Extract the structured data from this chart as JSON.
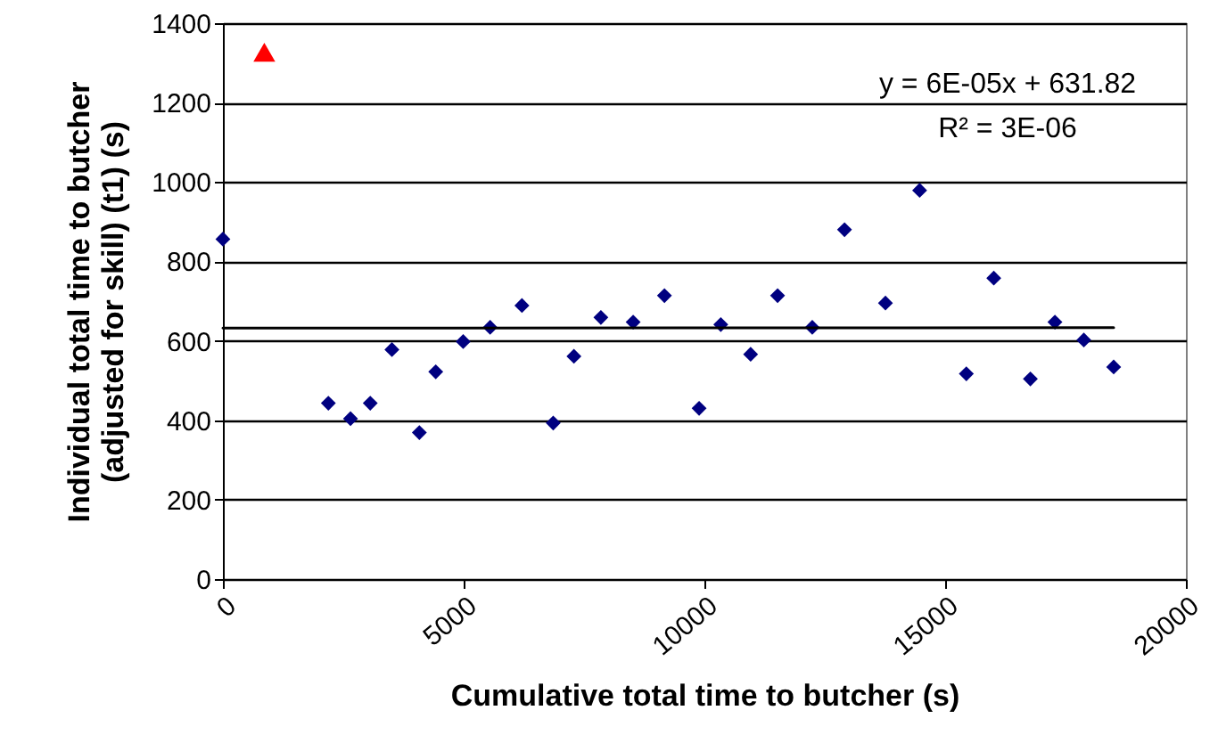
{
  "chart_data": {
    "type": "scatter",
    "xlabel": "Cumulative total time to butcher (s)",
    "ylabel": "Individual total time to butcher\n(adjusted for skill) (t1) (s)",
    "xlim": [
      0,
      20000
    ],
    "xticks": [
      0,
      5000,
      10000,
      15000,
      20000
    ],
    "ylim": [
      0,
      1400
    ],
    "yticks": [
      0,
      200,
      400,
      600,
      800,
      1000,
      1200,
      1400
    ],
    "grid": "y",
    "annotations": [
      "y = 6E-05x + 631.82",
      "R² = 3E-06"
    ],
    "series": [
      {
        "color": "#000080",
        "marker": "diamond",
        "x": [
          0,
          2190,
          2650,
          3060,
          3510,
          4080,
          4420,
          4990,
          5550,
          6210,
          6860,
          7290,
          7850,
          8520,
          9170,
          9890,
          10340,
          10960,
          11520,
          12240,
          12910,
          13760,
          14470,
          15440,
          16010,
          16770,
          17280,
          17880,
          18500
        ],
        "values": [
          856,
          443,
          404,
          443,
          578,
          369,
          522,
          598,
          634,
          689,
          393,
          561,
          659,
          647,
          714,
          430,
          641,
          566,
          714,
          634,
          880,
          695,
          979,
          517,
          758,
          504,
          647,
          602,
          534
        ]
      },
      {
        "color": "#ff0000",
        "marker": "triangle",
        "x": [
          860
        ],
        "values": [
          1327
        ]
      },
      {
        "type": "line",
        "color": "#000000",
        "marker": "none",
        "x": [
          0,
          18500
        ],
        "values": [
          632,
          633
        ]
      }
    ]
  }
}
